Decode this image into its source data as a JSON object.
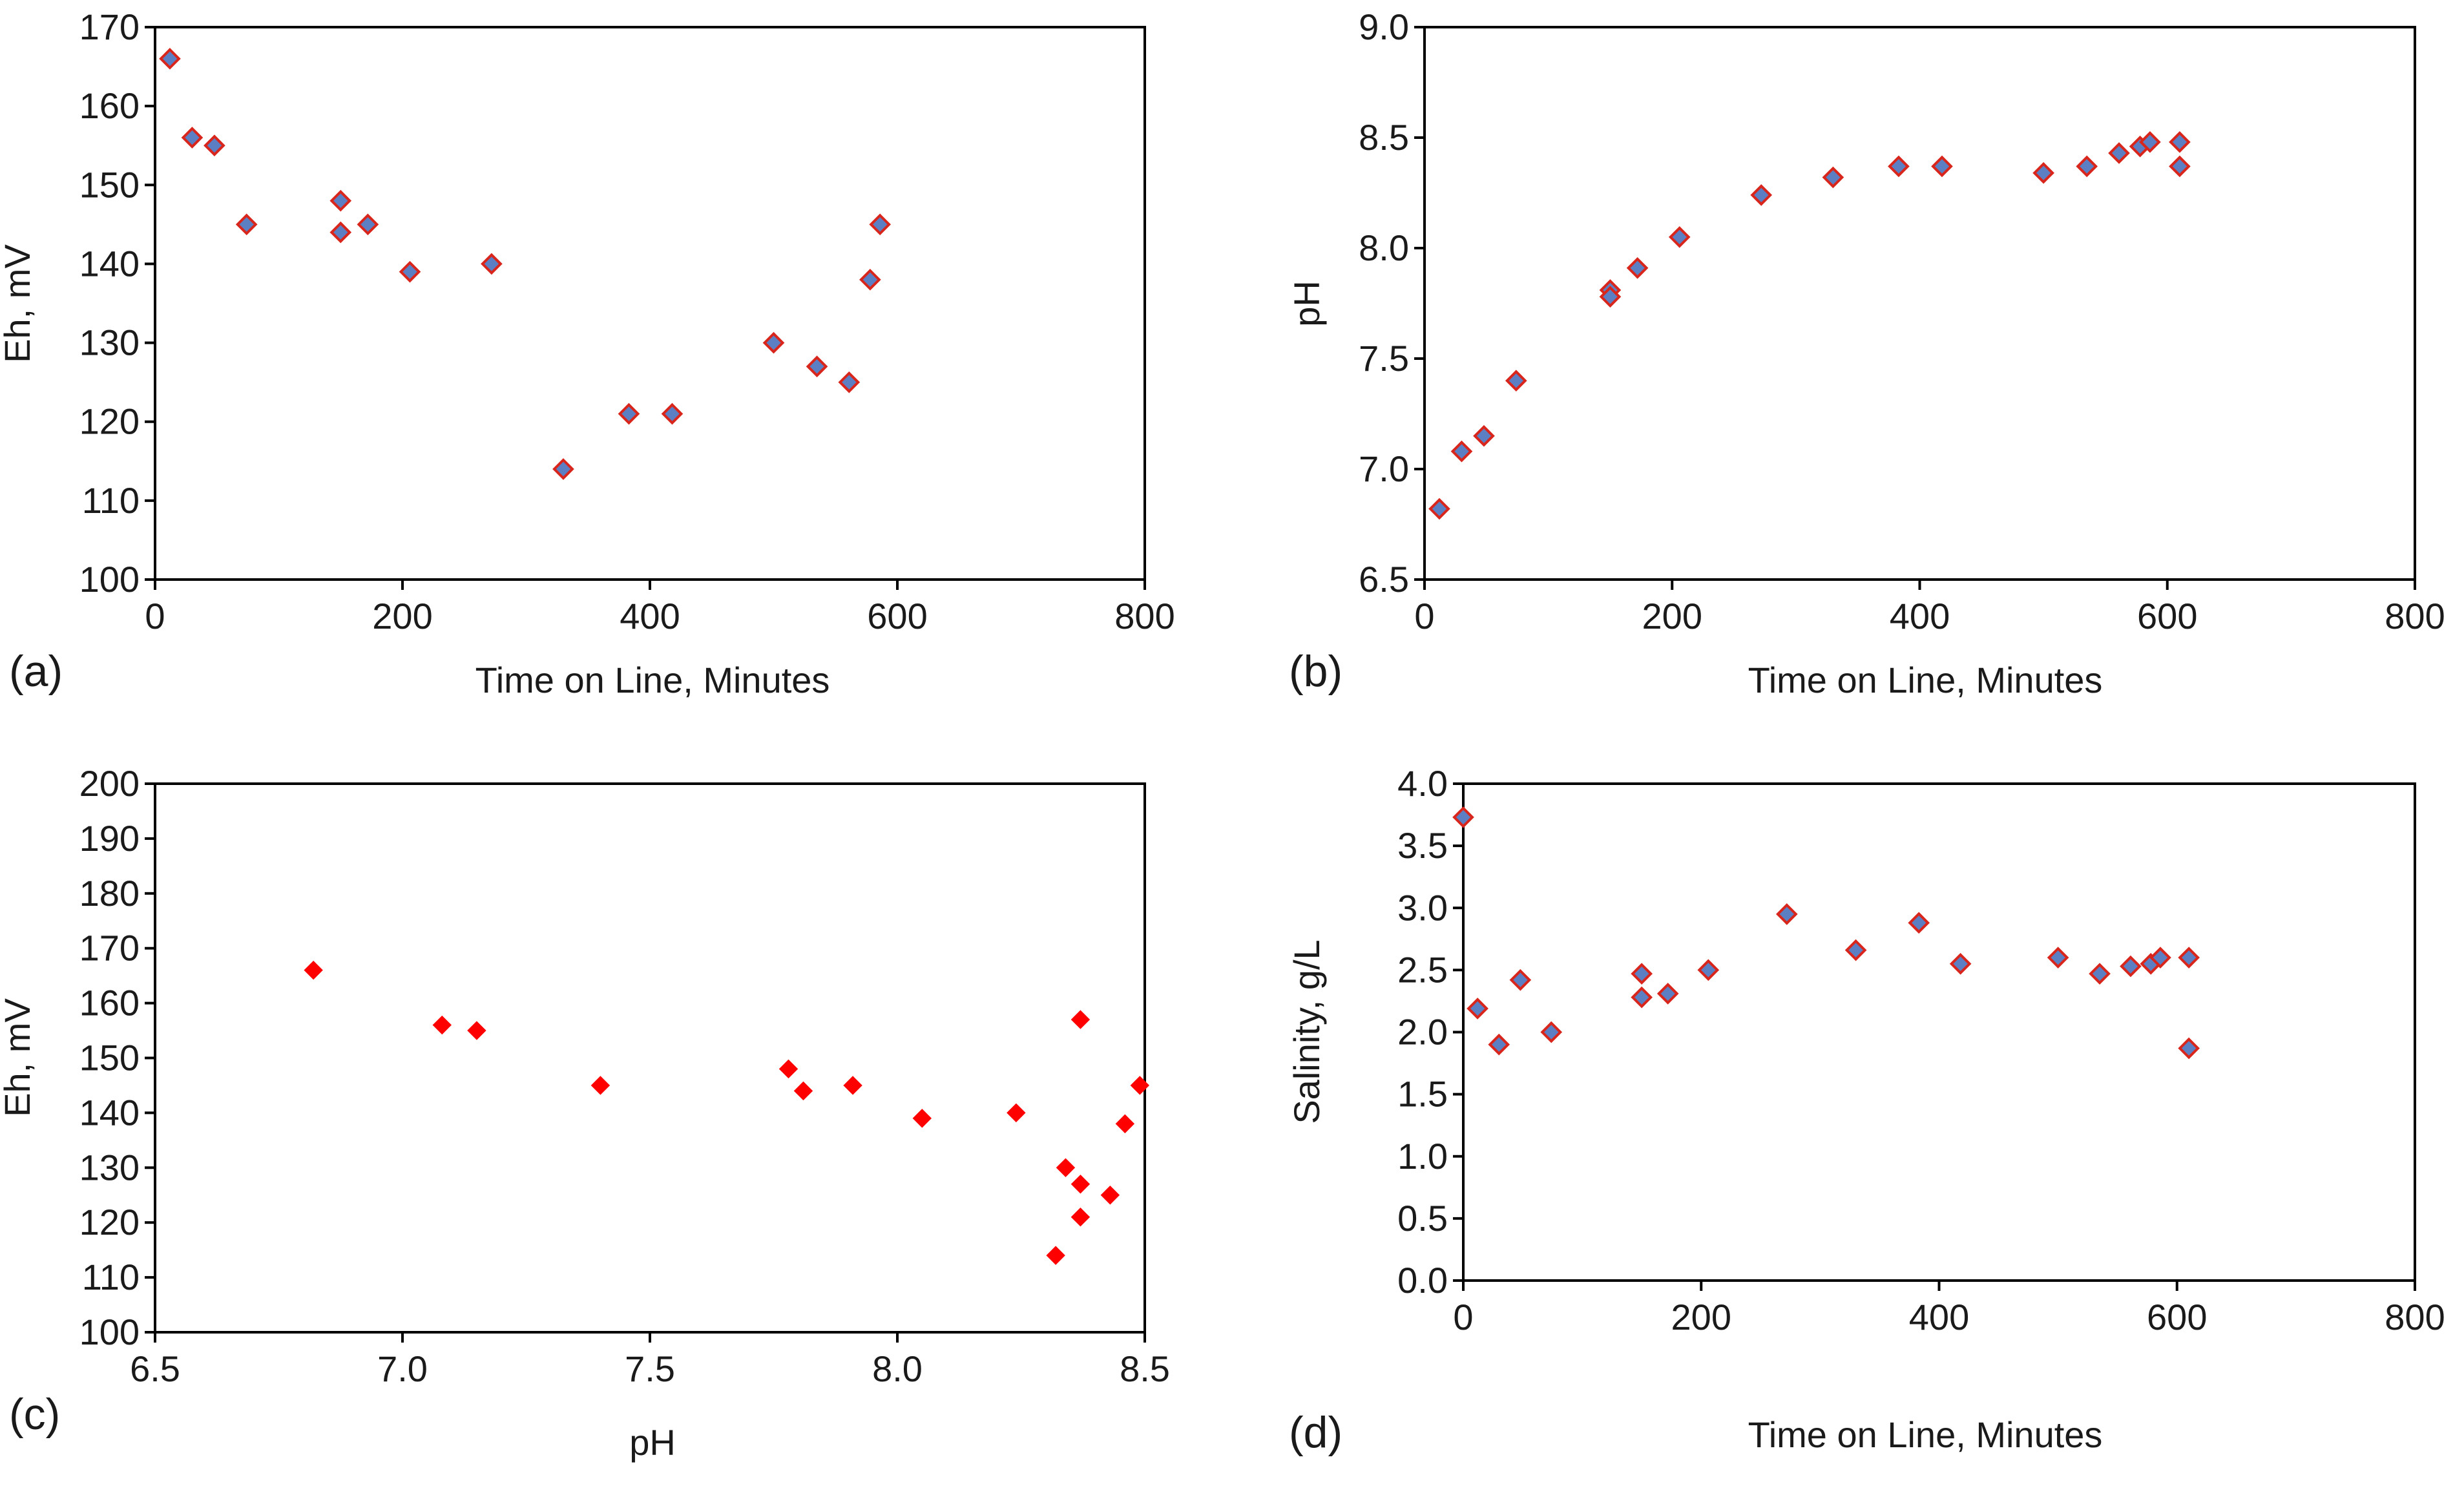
{
  "colors": {
    "marker_blue_red": "#5b7fc2",
    "marker_red": "#ff0000",
    "marker_edge": "#d9261c",
    "axis": "#000000",
    "text": "#1a1a1a"
  },
  "chart_data": [
    {
      "type": "scatter",
      "panel_label": "(a)",
      "xlabel": "Time on Line, Minutes",
      "ylabel": "Eh, mV",
      "xlim": [
        0,
        800
      ],
      "ylim": [
        100,
        170
      ],
      "xticks": [
        0,
        200,
        400,
        600,
        800
      ],
      "yticks": [
        100,
        110,
        120,
        130,
        140,
        150,
        160,
        170
      ],
      "xtick_labels": [
        "0",
        "200",
        "400",
        "600",
        "800"
      ],
      "ytick_labels": [
        "100",
        "110",
        "120",
        "130",
        "140",
        "150",
        "160",
        "170"
      ],
      "marker": "diamond",
      "marker_color": "blue-red",
      "points": [
        [
          12,
          166
        ],
        [
          30,
          156
        ],
        [
          48,
          155
        ],
        [
          74,
          145
        ],
        [
          150,
          148
        ],
        [
          150,
          144
        ],
        [
          172,
          145
        ],
        [
          206,
          139
        ],
        [
          272,
          140
        ],
        [
          330,
          114
        ],
        [
          383,
          121
        ],
        [
          418,
          121
        ],
        [
          500,
          130
        ],
        [
          535,
          127
        ],
        [
          561,
          125
        ],
        [
          578,
          138
        ],
        [
          586,
          145
        ]
      ]
    },
    {
      "type": "scatter",
      "panel_label": "(b)",
      "xlabel": "Time on Line, Minutes",
      "ylabel": "pH",
      "xlim": [
        0,
        800
      ],
      "ylim": [
        6.5,
        9.0
      ],
      "xticks": [
        0,
        200,
        400,
        600,
        800
      ],
      "yticks": [
        6.5,
        7.0,
        7.5,
        8.0,
        8.5,
        9.0
      ],
      "xtick_labels": [
        "0",
        "200",
        "400",
        "600",
        "800"
      ],
      "ytick_labels": [
        "6.5",
        "7.0",
        "7.5",
        "8.0",
        "8.5",
        "9.0"
      ],
      "marker": "diamond",
      "marker_color": "blue-red",
      "points": [
        [
          12,
          6.82
        ],
        [
          30,
          7.08
        ],
        [
          48,
          7.15
        ],
        [
          74,
          7.4
        ],
        [
          150,
          7.81
        ],
        [
          150,
          7.78
        ],
        [
          172,
          7.91
        ],
        [
          206,
          8.05
        ],
        [
          272,
          8.24
        ],
        [
          330,
          8.32
        ],
        [
          383,
          8.37
        ],
        [
          418,
          8.37
        ],
        [
          500,
          8.34
        ],
        [
          535,
          8.37
        ],
        [
          561,
          8.43
        ],
        [
          578,
          8.46
        ],
        [
          586,
          8.48
        ],
        [
          610,
          8.48
        ],
        [
          610,
          8.37
        ]
      ]
    },
    {
      "type": "scatter",
      "panel_label": "(c)",
      "xlabel": "pH",
      "ylabel": "Eh, mV",
      "xlim": [
        6.5,
        8.5
      ],
      "ylim": [
        100,
        200
      ],
      "xticks": [
        6.5,
        7.0,
        7.5,
        8.0,
        8.5
      ],
      "yticks": [
        100,
        110,
        120,
        130,
        140,
        150,
        160,
        170,
        180,
        190,
        200
      ],
      "xtick_labels": [
        "6.5",
        "7.0",
        "7.5",
        "8.0",
        "8.5"
      ],
      "ytick_labels": [
        "100",
        "110",
        "120",
        "130",
        "140",
        "150",
        "160",
        "170",
        "180",
        "190",
        "200"
      ],
      "marker": "diamond",
      "marker_color": "red",
      "points": [
        [
          6.82,
          166
        ],
        [
          7.08,
          156
        ],
        [
          7.15,
          155
        ],
        [
          7.4,
          145
        ],
        [
          7.78,
          148
        ],
        [
          7.81,
          144
        ],
        [
          7.91,
          145
        ],
        [
          8.05,
          139
        ],
        [
          8.24,
          140
        ],
        [
          8.32,
          114
        ],
        [
          8.34,
          130
        ],
        [
          8.37,
          127
        ],
        [
          8.37,
          121
        ],
        [
          8.37,
          157
        ],
        [
          8.43,
          125
        ],
        [
          8.46,
          138
        ],
        [
          8.49,
          145
        ]
      ]
    },
    {
      "type": "scatter",
      "panel_label": "(d)",
      "xlabel": "Time on Line, Minutes",
      "ylabel": "Salinity, g/L",
      "xlim": [
        0,
        800
      ],
      "ylim": [
        0.0,
        4.0
      ],
      "xticks": [
        0,
        200,
        400,
        600,
        800
      ],
      "yticks": [
        0.0,
        0.5,
        1.0,
        1.5,
        2.0,
        2.5,
        3.0,
        3.5,
        4.0
      ],
      "xtick_labels": [
        "0",
        "200",
        "400",
        "600",
        "800"
      ],
      "ytick_labels": [
        "0.0",
        "0.5",
        "1.0",
        "1.5",
        "2.0",
        "2.5",
        "3.0",
        "3.5",
        "4.0"
      ],
      "marker": "diamond",
      "marker_color": "blue-red",
      "points": [
        [
          0,
          3.73
        ],
        [
          12,
          2.19
        ],
        [
          30,
          1.9
        ],
        [
          48,
          2.42
        ],
        [
          74,
          2.0
        ],
        [
          150,
          2.47
        ],
        [
          150,
          2.28
        ],
        [
          172,
          2.31
        ],
        [
          206,
          2.5
        ],
        [
          272,
          2.95
        ],
        [
          330,
          2.66
        ],
        [
          383,
          2.88
        ],
        [
          418,
          2.55
        ],
        [
          500,
          2.6
        ],
        [
          535,
          2.47
        ],
        [
          561,
          2.53
        ],
        [
          578,
          2.55
        ],
        [
          586,
          2.6
        ],
        [
          610,
          2.6
        ],
        [
          610,
          1.87
        ]
      ]
    }
  ]
}
